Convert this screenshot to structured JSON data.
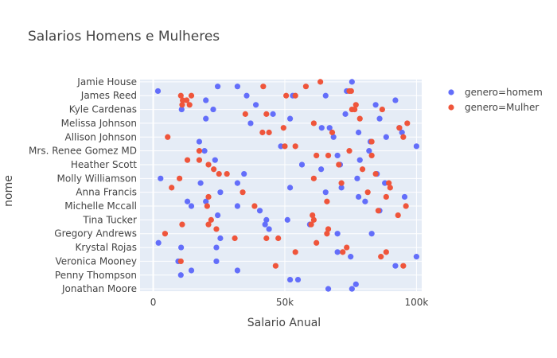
{
  "chart_data": {
    "type": "scatter",
    "title": "Salarios Homens e Mulheres",
    "xlabel": "Salario Anual",
    "ylabel": "nome",
    "xlim": [
      -5000,
      102000
    ],
    "x_ticks": [
      0,
      50000,
      100000
    ],
    "x_tick_labels": [
      "0",
      "50k",
      "100k"
    ],
    "categories": [
      "Jamie House",
      "James Reed",
      "Kyle Cardenas",
      "Melissa Johnson",
      "Allison Johnson",
      "Mrs. Renee Gomez MD",
      "Heather Scott",
      "Molly Williamson",
      "Anna Francis",
      "Michelle Mccall",
      "Tina Tucker",
      "Gregory Andrews",
      "Krystal Rojas",
      "Veronica Mooney",
      "Penny Thompson",
      "Jonathan Moore"
    ],
    "row_count": 46,
    "legend_position": "top-right",
    "grid": true,
    "series": [
      {
        "name": "genero=homem",
        "color": "#636efa",
        "points": [
          [
            75500,
            0
          ],
          [
            24500,
            1
          ],
          [
            32000,
            1
          ],
          [
            1800,
            2
          ],
          [
            73500,
            2
          ],
          [
            53000,
            3
          ],
          [
            35500,
            3
          ],
          [
            65500,
            3
          ],
          [
            20000,
            4
          ],
          [
            92000,
            4
          ],
          [
            39000,
            5
          ],
          [
            84500,
            5
          ],
          [
            10800,
            6
          ],
          [
            22800,
            6
          ],
          [
            73000,
            7
          ],
          [
            45500,
            7
          ],
          [
            20000,
            8
          ],
          [
            52000,
            8
          ],
          [
            86000,
            8
          ],
          [
            37000,
            9
          ],
          [
            64000,
            10
          ],
          [
            67000,
            10
          ],
          [
            93500,
            10
          ],
          [
            94500,
            11
          ],
          [
            78000,
            11
          ],
          [
            68500,
            12
          ],
          [
            88500,
            12
          ],
          [
            17500,
            13
          ],
          [
            82500,
            13
          ],
          [
            48500,
            14
          ],
          [
            100000,
            14
          ],
          [
            19500,
            15
          ],
          [
            82000,
            15
          ],
          [
            70000,
            16
          ],
          [
            23500,
            17
          ],
          [
            78500,
            17
          ],
          [
            56500,
            18
          ],
          [
            71000,
            18
          ],
          [
            63800,
            19
          ],
          [
            34500,
            20
          ],
          [
            85000,
            20
          ],
          [
            2800,
            21
          ],
          [
            77500,
            21
          ],
          [
            18000,
            22
          ],
          [
            32000,
            22
          ],
          [
            88000,
            22
          ],
          [
            52000,
            23
          ],
          [
            71500,
            23
          ],
          [
            25500,
            24
          ],
          [
            65500,
            24
          ],
          [
            78000,
            25
          ],
          [
            95500,
            25
          ],
          [
            13000,
            26
          ],
          [
            20000,
            26
          ],
          [
            80500,
            26
          ],
          [
            14500,
            27
          ],
          [
            32000,
            27
          ],
          [
            40500,
            28
          ],
          [
            86000,
            28
          ],
          [
            24500,
            29
          ],
          [
            51000,
            30
          ],
          [
            43000,
            30
          ],
          [
            42500,
            31
          ],
          [
            59500,
            31
          ],
          [
            44000,
            32
          ],
          [
            70000,
            33
          ],
          [
            83000,
            33
          ],
          [
            25500,
            34
          ],
          [
            2000,
            35
          ],
          [
            10600,
            36
          ],
          [
            24000,
            36
          ],
          [
            70000,
            37
          ],
          [
            75000,
            38
          ],
          [
            100000,
            38
          ],
          [
            9500,
            39
          ],
          [
            24000,
            39
          ],
          [
            92000,
            40
          ],
          [
            14500,
            41
          ],
          [
            32000,
            41
          ],
          [
            10500,
            42
          ],
          [
            52000,
            43
          ],
          [
            55000,
            43
          ],
          [
            77000,
            44
          ],
          [
            75500,
            45
          ],
          [
            66500,
            45
          ]
        ]
      },
      {
        "name": "genero=Mulher",
        "color": "#ef553b",
        "points": [
          [
            63500,
            0
          ],
          [
            58000,
            1
          ],
          [
            41800,
            1
          ],
          [
            74500,
            2
          ],
          [
            75200,
            2
          ],
          [
            10500,
            3
          ],
          [
            14500,
            3
          ],
          [
            50500,
            3
          ],
          [
            54000,
            3
          ],
          [
            11200,
            4
          ],
          [
            12700,
            4
          ],
          [
            77000,
            5
          ],
          [
            11000,
            5
          ],
          [
            13800,
            5
          ],
          [
            75500,
            6
          ],
          [
            76500,
            6
          ],
          [
            87000,
            6
          ],
          [
            35000,
            7
          ],
          [
            43000,
            7
          ],
          [
            78500,
            8
          ],
          [
            61000,
            9
          ],
          [
            96500,
            9
          ],
          [
            49500,
            10
          ],
          [
            93500,
            10
          ],
          [
            41500,
            11
          ],
          [
            44000,
            11
          ],
          [
            68000,
            11
          ],
          [
            5500,
            12
          ],
          [
            95000,
            12
          ],
          [
            83000,
            13
          ],
          [
            50000,
            14
          ],
          [
            54000,
            14
          ],
          [
            74500,
            15
          ],
          [
            17500,
            15
          ],
          [
            83000,
            16
          ],
          [
            13000,
            17
          ],
          [
            17500,
            17
          ],
          [
            66500,
            16
          ],
          [
            62000,
            16
          ],
          [
            21000,
            18
          ],
          [
            70500,
            18
          ],
          [
            23000,
            19
          ],
          [
            79500,
            19
          ],
          [
            25000,
            20
          ],
          [
            28000,
            20
          ],
          [
            84500,
            20
          ],
          [
            10000,
            21
          ],
          [
            61000,
            21
          ],
          [
            71500,
            22
          ],
          [
            89500,
            22
          ],
          [
            7000,
            23
          ],
          [
            90000,
            23
          ],
          [
            81500,
            24
          ],
          [
            34000,
            24
          ],
          [
            88500,
            25
          ],
          [
            21000,
            25
          ],
          [
            66000,
            26
          ],
          [
            38500,
            27
          ],
          [
            20500,
            27
          ],
          [
            96000,
            27
          ],
          [
            85500,
            28
          ],
          [
            60500,
            29
          ],
          [
            93000,
            29
          ],
          [
            22000,
            30
          ],
          [
            61000,
            30
          ],
          [
            11000,
            31
          ],
          [
            60000,
            31
          ],
          [
            21000,
            31
          ],
          [
            66500,
            32
          ],
          [
            24000,
            32
          ],
          [
            4500,
            33
          ],
          [
            66000,
            33
          ],
          [
            47500,
            34
          ],
          [
            31000,
            34
          ],
          [
            43000,
            34
          ],
          [
            62000,
            35
          ],
          [
            73500,
            36
          ],
          [
            54000,
            37
          ],
          [
            72000,
            37
          ],
          [
            88500,
            37
          ],
          [
            86500,
            38
          ],
          [
            10500,
            39
          ],
          [
            46500,
            40
          ],
          [
            95000,
            40
          ]
        ]
      }
    ]
  }
}
